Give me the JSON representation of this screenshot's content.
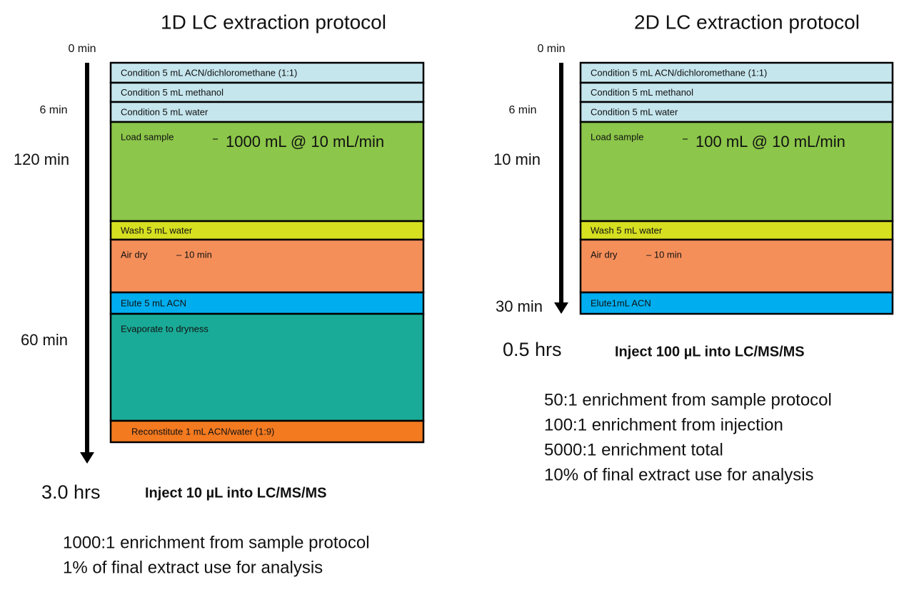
{
  "panels": [
    {
      "title": "1D LC extraction protocol",
      "time_labels": [
        "0 min",
        "6 min",
        "120 min",
        "60 min"
      ],
      "steps": [
        {
          "label": "Condition 5 mL ACN/dichloromethane (1:1)"
        },
        {
          "label": "Condition 5 mL methanol"
        },
        {
          "label": "Condition 5 mL water"
        },
        {
          "label": "Load sample",
          "detail": "1000 mL @ 10 mL/min"
        },
        {
          "label": "Wash 5 mL water"
        },
        {
          "label": "Air dry",
          "detail": "– 10 min"
        },
        {
          "label": "Elute 5 mL ACN"
        },
        {
          "label": "Evaporate to dryness"
        },
        {
          "label": "Reconstitute 1 mL ACN/water (1:9)"
        }
      ],
      "total": "3.0 hrs",
      "inject": "Inject 10 µL into LC/MS/MS",
      "notes": [
        "1000:1 enrichment from sample protocol",
        "1% of final extract use for analysis"
      ]
    },
    {
      "title": "2D LC extraction protocol",
      "time_labels": [
        "0 min",
        "6 min",
        "10 min",
        "30 min"
      ],
      "steps": [
        {
          "label": "Condition 5 mL ACN/dichloromethane (1:1)"
        },
        {
          "label": "Condition 5 mL methanol"
        },
        {
          "label": "Condition 5 mL water"
        },
        {
          "label": "Load sample",
          "detail": "100 mL @ 10 mL/min"
        },
        {
          "label": "Wash 5 mL water"
        },
        {
          "label": "Air dry",
          "detail": "– 10 min"
        },
        {
          "label": "Elute1mL ACN"
        }
      ],
      "total": "0.5 hrs",
      "inject": "Inject 100 µL into LC/MS/MS",
      "notes": [
        "50:1 enrichment from sample protocol",
        "100:1 enrichment from injection",
        "5000:1 enrichment total",
        "10% of final extract use for analysis"
      ]
    }
  ]
}
